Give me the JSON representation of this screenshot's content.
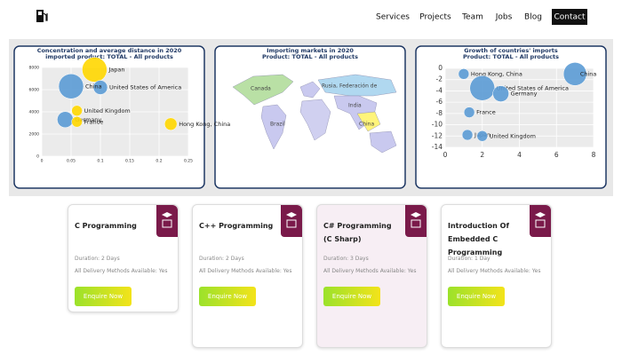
{
  "nav": {
    "items": [
      "Services",
      "Projects",
      "Team",
      "Jobs",
      "Blog",
      "Contact"
    ]
  },
  "panels": [
    {
      "chart_data": {
        "type": "bubble",
        "title": "Concentration and average distance in 2020",
        "subtitle": "imported product: TOTAL - All products",
        "labels": [
          "Japan",
          "United States of America",
          "China",
          "United Kingdom",
          "Germany",
          "France",
          "Hong Kong, China"
        ],
        "x": [
          0.09,
          0.1,
          0.05,
          0.06,
          0.04,
          0.06,
          0.22
        ],
        "y": [
          7800,
          6200,
          6300,
          4100,
          3300,
          3100,
          2900
        ],
        "sizes": [
          14,
          8,
          14,
          6,
          9,
          6,
          7
        ],
        "colors": [
          "#ffd700",
          "#5b9bd5",
          "#5b9bd5",
          "#ffd700",
          "#5b9bd5",
          "#ffd700",
          "#ffd700"
        ],
        "xlim": [
          0,
          0.25
        ],
        "xticks": [
          0,
          0.05,
          0.1,
          0.15,
          0.2,
          0.25
        ],
        "ylim": [
          0,
          8000
        ],
        "yticks": [
          0,
          2000,
          4000,
          6000,
          8000
        ],
        "grid": true
      }
    },
    {
      "map": {
        "title": "Importing markets in 2020",
        "subtitle": "Product: TOTAL - All products",
        "labels": [
          "Canada",
          "Rusia, Federación de",
          "India",
          "China",
          "Brazil"
        ]
      }
    },
    {
      "chart_data": {
        "type": "bubble",
        "title": "Growth of countries' imports",
        "subtitle": "Product: TOTAL - All products",
        "labels": [
          "Hong Kong, China",
          "United States of America",
          "Germany",
          "France",
          "Japan",
          "United Kingdom",
          "China"
        ],
        "x": [
          1,
          2,
          3,
          1.3,
          1.2,
          2,
          7
        ],
        "y": [
          -1,
          -3.5,
          -4.5,
          -7.8,
          -11.8,
          -12,
          -1
        ],
        "sizes": [
          6,
          14,
          9,
          6,
          6,
          6,
          13
        ],
        "colors": [
          "#5b9bd5",
          "#5b9bd5",
          "#5b9bd5",
          "#5b9bd5",
          "#5b9bd5",
          "#5b9bd5",
          "#5b9bd5"
        ],
        "xlim": [
          0,
          8
        ],
        "xticks": [
          0,
          2,
          4,
          6,
          8
        ],
        "ylim": [
          -14,
          0
        ],
        "yticks": [
          0,
          -2,
          -4,
          -6,
          -8,
          -10,
          -12,
          -14
        ],
        "grid": true
      }
    }
  ],
  "courses": [
    {
      "title": "C Programming",
      "duration_label": "Duration:",
      "duration": "2 Days",
      "delivery_label": "All Delivery Methods Available:",
      "delivery": "Yes",
      "button": "Enquire Now"
    },
    {
      "title": "C++ Programming",
      "duration_label": "Duration:",
      "duration": "2 Days",
      "delivery_label": "All Delivery Methods Available:",
      "delivery": "Yes",
      "button": "Enquire Now"
    },
    {
      "title": "C# Programming (C Sharp)",
      "duration_label": "Duration:",
      "duration": "3 Days",
      "delivery_label": "All Delivery Methods Available:",
      "delivery": "Yes",
      "button": "Enquire Now"
    },
    {
      "title": "Introduction Of Embedded C Programming",
      "duration_label": "Duration:",
      "duration": "1 Day",
      "delivery_label": "All Delivery Methods Available:",
      "delivery": "Yes",
      "button": "Enquire Now"
    }
  ]
}
